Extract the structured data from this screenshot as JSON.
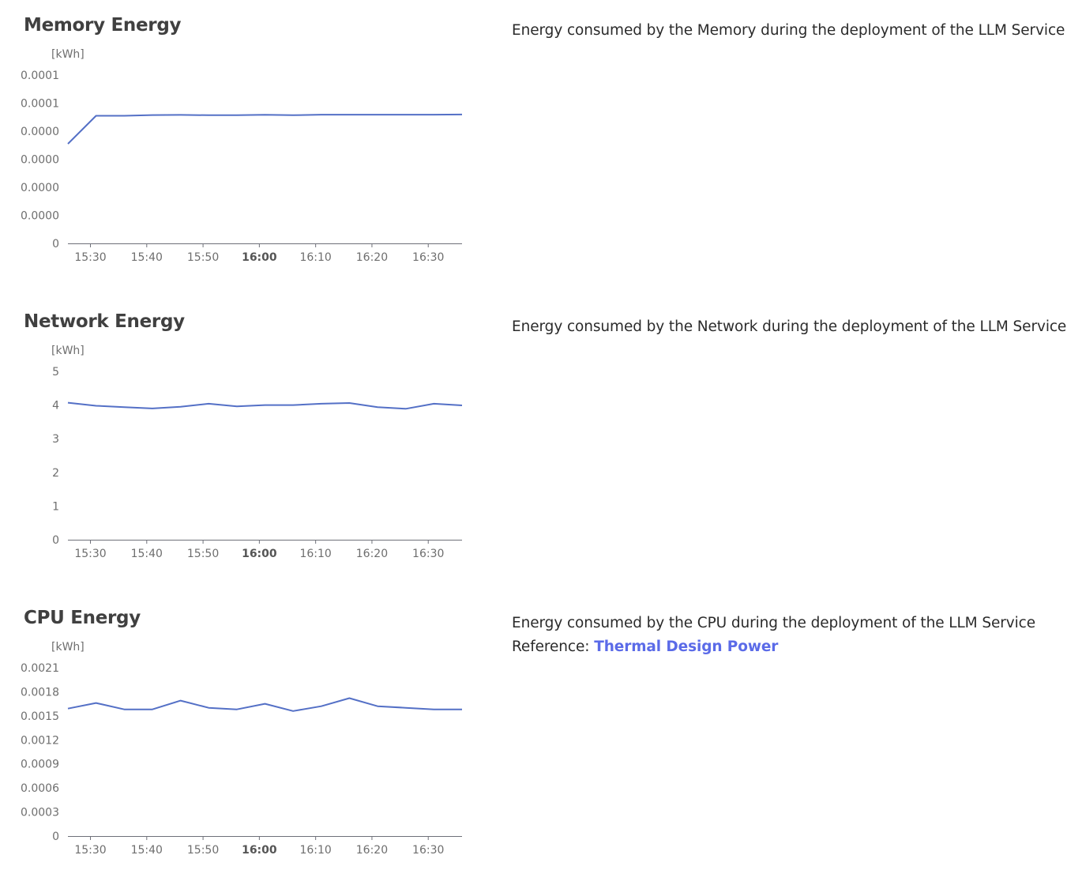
{
  "colors": {
    "line": "#5470c6",
    "axis": "#6e7079",
    "link": "#5b6be8"
  },
  "sections": [
    {
      "title": "Memory Energy",
      "description": "Energy consumed by the Memory during the deployment of the LLM Service",
      "chart_data": {
        "type": "line",
        "title": "Memory Energy",
        "ylabel": "[kWh]",
        "y_tick_labels": [
          "0",
          "0.0000",
          "0.0000",
          "0.0000",
          "0.0000",
          "0.0001",
          "0.0001"
        ],
        "ylim": [
          0,
          0.00012
        ],
        "x_tick_labels": [
          "15:30",
          "15:40",
          "15:50",
          "16:00",
          "16:10",
          "16:20",
          "16:30"
        ],
        "x_bold_label": "16:00",
        "x": [
          "15:26",
          "15:31",
          "15:36",
          "15:41",
          "15:46",
          "15:51",
          "15:56",
          "16:01",
          "16:06",
          "16:11",
          "16:16",
          "16:21",
          "16:26",
          "16:31",
          "16:36"
        ],
        "values": [
          7.1e-05,
          9.1e-05,
          9.1e-05,
          9.15e-05,
          9.16e-05,
          9.14e-05,
          9.14e-05,
          9.17e-05,
          9.14e-05,
          9.18e-05,
          9.18e-05,
          9.18e-05,
          9.18e-05,
          9.18e-05,
          9.19e-05
        ]
      }
    },
    {
      "title": "Network Energy",
      "description": "Energy consumed by the Network during the deployment of the LLM Service",
      "chart_data": {
        "type": "line",
        "title": "Network Energy",
        "ylabel": "[kWh]",
        "y_tick_labels": [
          "0",
          "1",
          "2",
          "3",
          "4",
          "5"
        ],
        "ylim": [
          0,
          5
        ],
        "x_tick_labels": [
          "15:30",
          "15:40",
          "15:50",
          "16:00",
          "16:10",
          "16:20",
          "16:30"
        ],
        "x_bold_label": "16:00",
        "x": [
          "15:26",
          "15:31",
          "15:36",
          "15:41",
          "15:46",
          "15:51",
          "15:56",
          "16:01",
          "16:06",
          "16:11",
          "16:16",
          "16:21",
          "16:26",
          "16:31",
          "16:36"
        ],
        "values": [
          4.07,
          3.98,
          3.94,
          3.9,
          3.95,
          4.04,
          3.96,
          4.0,
          4.0,
          4.04,
          4.06,
          3.94,
          3.89,
          4.04,
          3.99
        ]
      }
    },
    {
      "title": "CPU Energy",
      "description": "Energy consumed by the CPU during the deployment of the LLM Service",
      "reference_label": "Reference: ",
      "reference_link": "Thermal Design Power",
      "chart_data": {
        "type": "line",
        "title": "CPU Energy",
        "ylabel": "[kWh]",
        "y_tick_labels": [
          "0",
          "0.0003",
          "0.0006",
          "0.0009",
          "0.0012",
          "0.0015",
          "0.0018",
          "0.0021"
        ],
        "ylim": [
          0,
          0.0021
        ],
        "x_tick_labels": [
          "15:30",
          "15:40",
          "15:50",
          "16:00",
          "16:10",
          "16:20",
          "16:30"
        ],
        "x_bold_label": "16:00",
        "x": [
          "15:26",
          "15:31",
          "15:36",
          "15:41",
          "15:46",
          "15:51",
          "15:56",
          "16:01",
          "16:06",
          "16:11",
          "16:16",
          "16:21",
          "16:26",
          "16:31",
          "16:36"
        ],
        "values": [
          0.00159,
          0.00166,
          0.00158,
          0.00158,
          0.00169,
          0.0016,
          0.00158,
          0.00165,
          0.00156,
          0.00162,
          0.00172,
          0.00162,
          0.0016,
          0.00158,
          0.00158
        ]
      }
    }
  ]
}
